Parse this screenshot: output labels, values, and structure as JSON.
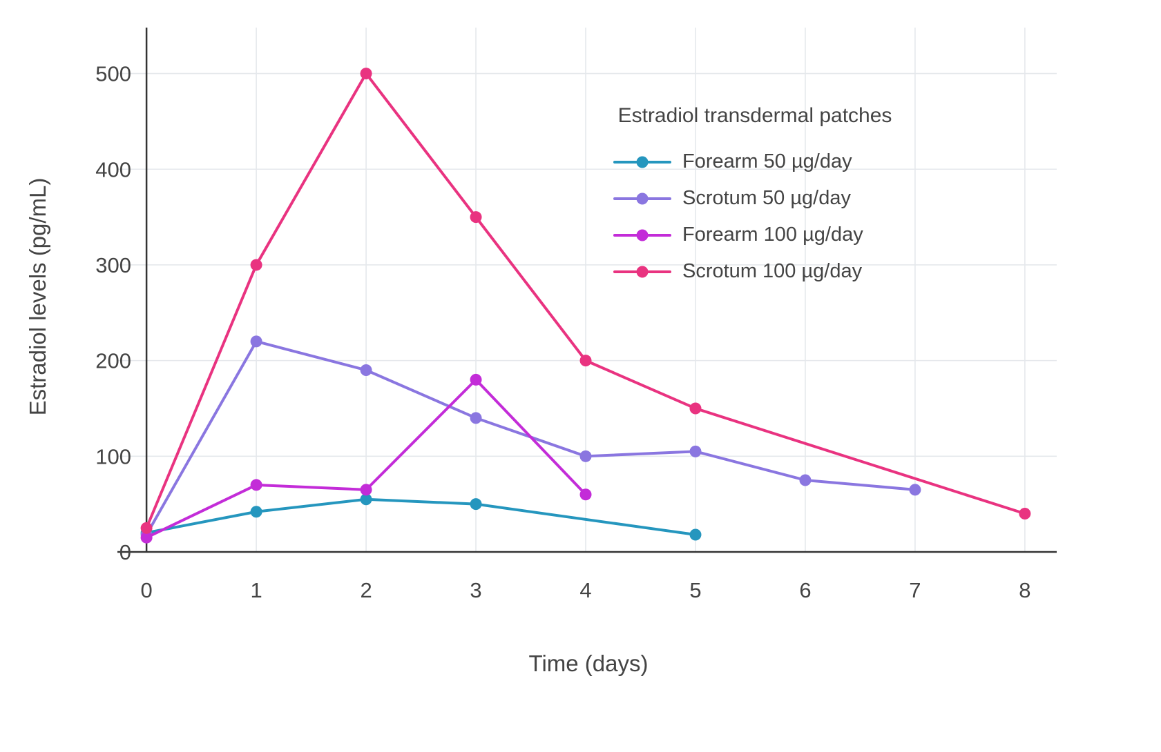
{
  "chart_data": {
    "type": "line",
    "title": "",
    "xlabel": "Time (days)",
    "ylabel": "Estradiol levels (pg/mL)",
    "legend_title": "Estradiol transdermal patches",
    "legend_position": "top-right-inside",
    "grid": true,
    "xlim": [
      -0.265,
      8.29
    ],
    "ylim": [
      0,
      548
    ],
    "xticks": [
      0,
      1,
      2,
      3,
      4,
      5,
      6,
      7,
      8
    ],
    "yticks": [
      0,
      100,
      200,
      300,
      400,
      500
    ],
    "series": [
      {
        "name": "Forearm 50 µg/day",
        "color": "#2596be",
        "x": [
          0,
          1,
          2,
          3,
          5
        ],
        "y": [
          20,
          42,
          55,
          50,
          18
        ]
      },
      {
        "name": "Scrotum 50 µg/day",
        "color": "#8a76e0",
        "x": [
          0,
          1,
          2,
          3,
          4,
          5,
          6,
          7
        ],
        "y": [
          18,
          220,
          190,
          140,
          100,
          105,
          75,
          65
        ]
      },
      {
        "name": "Forearm 100 µg/day",
        "color": "#c32cd8",
        "x": [
          0,
          1,
          2,
          3,
          4
        ],
        "y": [
          15,
          70,
          65,
          180,
          60
        ]
      },
      {
        "name": "Scrotum 100 µg/day",
        "color": "#e93380",
        "x": [
          0,
          1,
          2,
          3,
          4,
          5,
          8
        ],
        "y": [
          25,
          300,
          500,
          350,
          200,
          150,
          40
        ]
      }
    ],
    "style": {
      "grid_color": "#e5e8ec",
      "axis_color": "#333333",
      "text_color": "#444444"
    }
  }
}
